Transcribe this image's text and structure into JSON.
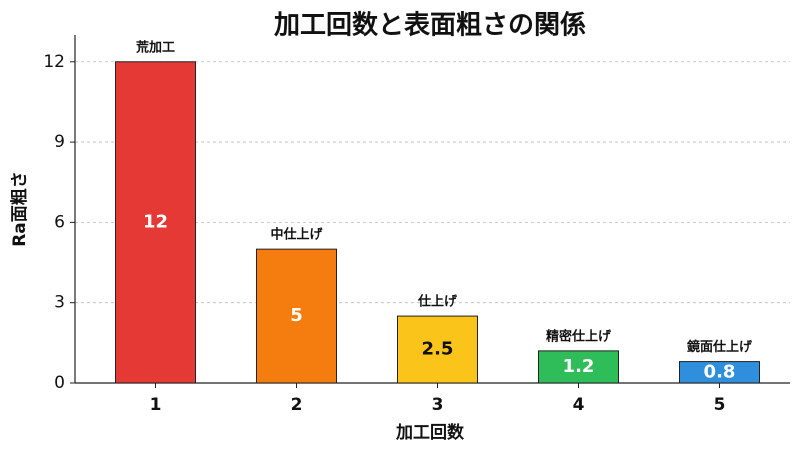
{
  "chart_data": {
    "type": "bar",
    "title": "加工回数と表面粗さの関係",
    "x_label": "加工回数",
    "y_label": "Ra面粗さ",
    "categories": [
      "1",
      "2",
      "3",
      "4",
      "5"
    ],
    "values": [
      12,
      5,
      2.5,
      1.2,
      0.8
    ],
    "annotations": [
      "荒加工",
      "中仕上げ",
      "仕上げ",
      "精密仕上げ",
      "鏡面仕上げ"
    ],
    "colors": [
      "#e53935",
      "#f57c0f",
      "#fbc41a",
      "#2fbd5a",
      "#2f8fdc"
    ],
    "ylim": [
      0,
      13
    ],
    "yticks": [
      0,
      3,
      6,
      9,
      12
    ],
    "grid": true
  }
}
